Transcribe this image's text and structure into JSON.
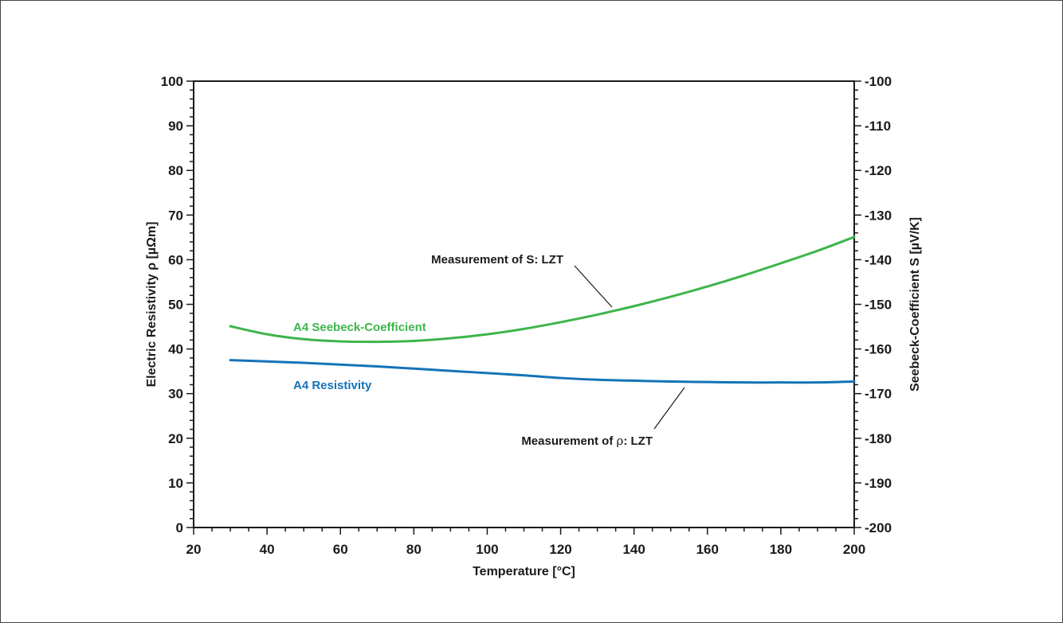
{
  "chart_data": {
    "type": "line",
    "xlabel": "Temperature [°C]",
    "ylabel": "Electric Resistivity ρ [µΩm]",
    "y2label": "Seebeck-Coefficient S [µV/K]",
    "xlim": [
      20,
      200
    ],
    "ylim": [
      0,
      100
    ],
    "y2lim": [
      -200,
      -100
    ],
    "x_ticks": [
      20,
      40,
      60,
      80,
      100,
      120,
      140,
      160,
      180,
      200
    ],
    "y_ticks": [
      0,
      10,
      20,
      30,
      40,
      50,
      60,
      70,
      80,
      90,
      100
    ],
    "y2_ticks": [
      -200,
      -190,
      -180,
      -170,
      -160,
      -150,
      -140,
      -130,
      -120,
      -110,
      -100
    ],
    "grid": false,
    "series": [
      {
        "name": "A4 Seebeck-Coefficient",
        "axis": "right",
        "color": "#3db54a",
        "x": [
          30,
          40,
          50,
          60,
          70,
          80,
          90,
          100,
          110,
          120,
          130,
          140,
          150,
          160,
          170,
          180,
          190,
          200
        ],
        "y": [
          -154.9,
          -156.7,
          -157.8,
          -158.3,
          -158.4,
          -158.2,
          -157.6,
          -156.7,
          -155.5,
          -154.0,
          -152.3,
          -150.4,
          -148.3,
          -146.0,
          -143.5,
          -140.8,
          -138.0,
          -134.9
        ]
      },
      {
        "name": "A4 Resistivity",
        "axis": "left",
        "color": "#1473b8",
        "x": [
          30,
          40,
          50,
          60,
          70,
          80,
          90,
          100,
          110,
          120,
          130,
          140,
          150,
          160,
          170,
          180,
          190,
          200
        ],
        "y": [
          37.5,
          37.2,
          36.9,
          36.5,
          36.1,
          35.6,
          35.1,
          34.6,
          34.1,
          33.5,
          33.1,
          32.9,
          32.7,
          32.6,
          32.5,
          32.5,
          32.5,
          32.7
        ]
      }
    ],
    "annotations": [
      {
        "text": "Measurement of S: LZT"
      },
      {
        "text_prefix": "Measurement of ",
        "text_symbol": "ρ",
        "text_suffix": ": LZT"
      }
    ]
  }
}
